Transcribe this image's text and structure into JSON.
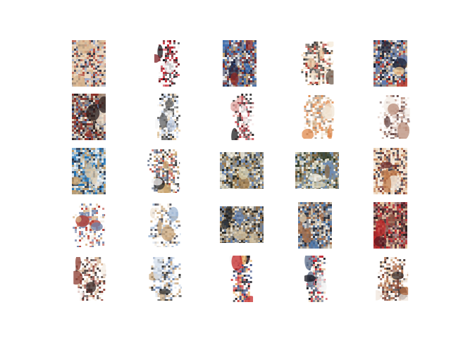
{
  "figure": {
    "grid": {
      "rows": 5,
      "cols": 5
    },
    "background": "#ffffff",
    "tiles": [
      {
        "row": 0,
        "col": 0,
        "palette": [
          "#d8b58e",
          "#2b2d3f",
          "#9aa9c9",
          "#e9d7c0",
          "#b04a3b"
        ],
        "shape": "panel"
      },
      {
        "row": 0,
        "col": 1,
        "palette": [
          "#c41e2a",
          "#1a1a1f",
          "#f2f2f2",
          "#7b1c22",
          "#ffffff"
        ],
        "shape": "figure"
      },
      {
        "row": 0,
        "col": 2,
        "palette": [
          "#1f2440",
          "#c9a46a",
          "#3b6fb4",
          "#f3f3f3",
          "#8c2a25"
        ],
        "shape": "panel"
      },
      {
        "row": 0,
        "col": 3,
        "palette": [
          "#e8c7a0",
          "#2a2a2a",
          "#b33a2d",
          "#f4e9d8",
          "#6d5b4c"
        ],
        "shape": "blob"
      },
      {
        "row": 0,
        "col": 4,
        "palette": [
          "#1c2233",
          "#c33a2c",
          "#5c78b0",
          "#e6c18e",
          "#f2f2f2"
        ],
        "shape": "panel"
      },
      {
        "row": 1,
        "col": 0,
        "palette": [
          "#2a1d1d",
          "#b8977a",
          "#5a6e9a",
          "#f1e4d0",
          "#8e2c22"
        ],
        "shape": "panel"
      },
      {
        "row": 1,
        "col": 1,
        "palette": [
          "#f4f4f4",
          "#2b2b2b",
          "#c1cfe6",
          "#dfc49e",
          "#5f5f60"
        ],
        "shape": "figure"
      },
      {
        "row": 1,
        "col": 2,
        "palette": [
          "#ffffff",
          "#6e1a22",
          "#c2333a",
          "#1e1e1e",
          "#e0a6a0"
        ],
        "shape": "figure"
      },
      {
        "row": 1,
        "col": 3,
        "palette": [
          "#f2e6d6",
          "#c9a57a",
          "#e08a4c",
          "#9b8c82",
          "#ffffff"
        ],
        "shape": "blob"
      },
      {
        "row": 1,
        "col": 4,
        "palette": [
          "#f3ece6",
          "#b88c7a",
          "#6b4b48",
          "#d6c0b6",
          "#ffffff"
        ],
        "shape": "blob"
      },
      {
        "row": 2,
        "col": 0,
        "palette": [
          "#1d6fb0",
          "#d9cbb2",
          "#2a2f3f",
          "#c49a62",
          "#f6f6f6"
        ],
        "shape": "panel"
      },
      {
        "row": 2,
        "col": 1,
        "palette": [
          "#f3f3f3",
          "#4e5b7a",
          "#c9a46e",
          "#2a2a2a",
          "#b84a3a"
        ],
        "shape": "blob"
      },
      {
        "row": 2,
        "col": 2,
        "palette": [
          "#2b2b22",
          "#d8cfae",
          "#6d89b6",
          "#f3efe2",
          "#a07a48"
        ],
        "shape": "wide"
      },
      {
        "row": 2,
        "col": 3,
        "palette": [
          "#2f3a26",
          "#dcd4b8",
          "#6b8bb8",
          "#f2f0e8",
          "#8a6a44"
        ],
        "shape": "wide"
      },
      {
        "row": 2,
        "col": 4,
        "palette": [
          "#e6c6a4",
          "#6b2a2a",
          "#f3ede4",
          "#3c3c4a",
          "#c27d4e"
        ],
        "shape": "panel"
      },
      {
        "row": 3,
        "col": 0,
        "palette": [
          "#f2ede4",
          "#b43a2e",
          "#6d7fa6",
          "#d8b48a",
          "#ffffff"
        ],
        "shape": "blob"
      },
      {
        "row": 3,
        "col": 1,
        "palette": [
          "#ffffff",
          "#9fb7d4",
          "#c9a679",
          "#4a4a55",
          "#f0e6d8"
        ],
        "shape": "blob"
      },
      {
        "row": 3,
        "col": 2,
        "palette": [
          "#1d1d1d",
          "#cdbb99",
          "#5f7fb0",
          "#efe8da",
          "#8a6a44"
        ],
        "shape": "wide"
      },
      {
        "row": 3,
        "col": 3,
        "palette": [
          "#2a2d38",
          "#dbc6a6",
          "#4a78b0",
          "#f2efe8",
          "#a26a46"
        ],
        "shape": "panel"
      },
      {
        "row": 3,
        "col": 4,
        "palette": [
          "#5a1a22",
          "#c22a2a",
          "#2a1f1f",
          "#e8c8a0",
          "#8c5a48"
        ],
        "shape": "panel"
      },
      {
        "row": 4,
        "col": 0,
        "palette": [
          "#3a2a28",
          "#d6b392",
          "#f4ede4",
          "#8a3a2e",
          "#ffffff"
        ],
        "shape": "blob"
      },
      {
        "row": 4,
        "col": 1,
        "palette": [
          "#ffffff",
          "#d8e2ee",
          "#6c86b0",
          "#c9a982",
          "#2c2c2c"
        ],
        "shape": "blob"
      },
      {
        "row": 4,
        "col": 2,
        "palette": [
          "#2a3f7a",
          "#c62a2a",
          "#e8b36a",
          "#f4f4f4",
          "#1e1e24"
        ],
        "shape": "figure"
      },
      {
        "row": 4,
        "col": 3,
        "palette": [
          "#c01e2a",
          "#1a1a22",
          "#e7c8a4",
          "#f4f4f4",
          "#5a6b88"
        ],
        "shape": "figure"
      },
      {
        "row": 4,
        "col": 4,
        "palette": [
          "#d8b58e",
          "#7a3a2a",
          "#f0e6dc",
          "#3a2c2a",
          "#b0683e"
        ],
        "shape": "blob"
      }
    ]
  }
}
